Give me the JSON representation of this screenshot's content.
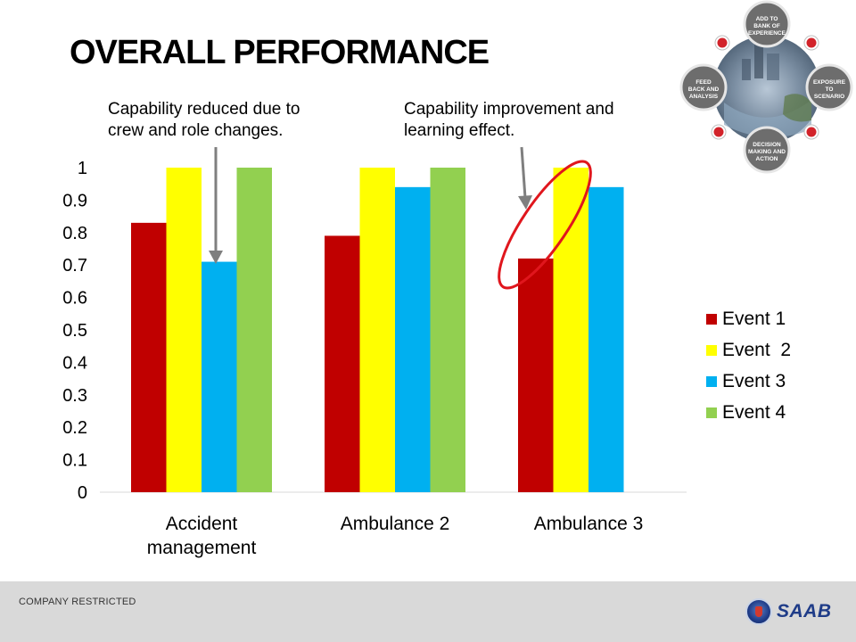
{
  "slide": {
    "title": "OVERALL PERFORMANCE",
    "annotation_1": [
      "Capability reduced due to",
      "crew and role changes."
    ],
    "annotation_2": [
      "Capability improvement and",
      "learning effect."
    ],
    "footer_text": "COMPANY RESTRICTED",
    "logo_text": "SAAB"
  },
  "cycle_diagram": {
    "labels": [
      "ADD TO BANK OF EXPERIENCE",
      "EXPOSURE TO SCENARIO",
      "DECISION MAKING AND ACTION",
      "FEED BACK AND ANALYSIS"
    ]
  },
  "colors": {
    "event1": "#c00000",
    "event2": "#ffff00",
    "event3": "#00b0f0",
    "event4": "#92d050",
    "highlight_ellipse": "#e0161d",
    "arrow": "#7f7f7f"
  },
  "chart_data": {
    "type": "bar",
    "categories": [
      "Accident management",
      "Ambulance 2",
      "Ambulance 3"
    ],
    "category_label_lines": [
      [
        "Accident",
        "management"
      ],
      [
        "Ambulance 2"
      ],
      [
        "Ambulance 3"
      ]
    ],
    "series": [
      {
        "name": "Event 1",
        "values": [
          0.83,
          0.79,
          0.72
        ]
      },
      {
        "name": "Event  2",
        "values": [
          1.0,
          1.0,
          1.0
        ]
      },
      {
        "name": "Event 3",
        "values": [
          0.71,
          0.94,
          0.94
        ]
      },
      {
        "name": "Event 4",
        "values": [
          1.0,
          1.0,
          null
        ]
      }
    ],
    "ylim": [
      0,
      1
    ],
    "yticks": [
      "0",
      "0.1",
      "0.2",
      "0.3",
      "0.4",
      "0.5",
      "0.6",
      "0.7",
      "0.8",
      "0.9",
      "1"
    ],
    "grid": false,
    "legend_position": "right",
    "xlabel": "",
    "ylabel": ""
  }
}
